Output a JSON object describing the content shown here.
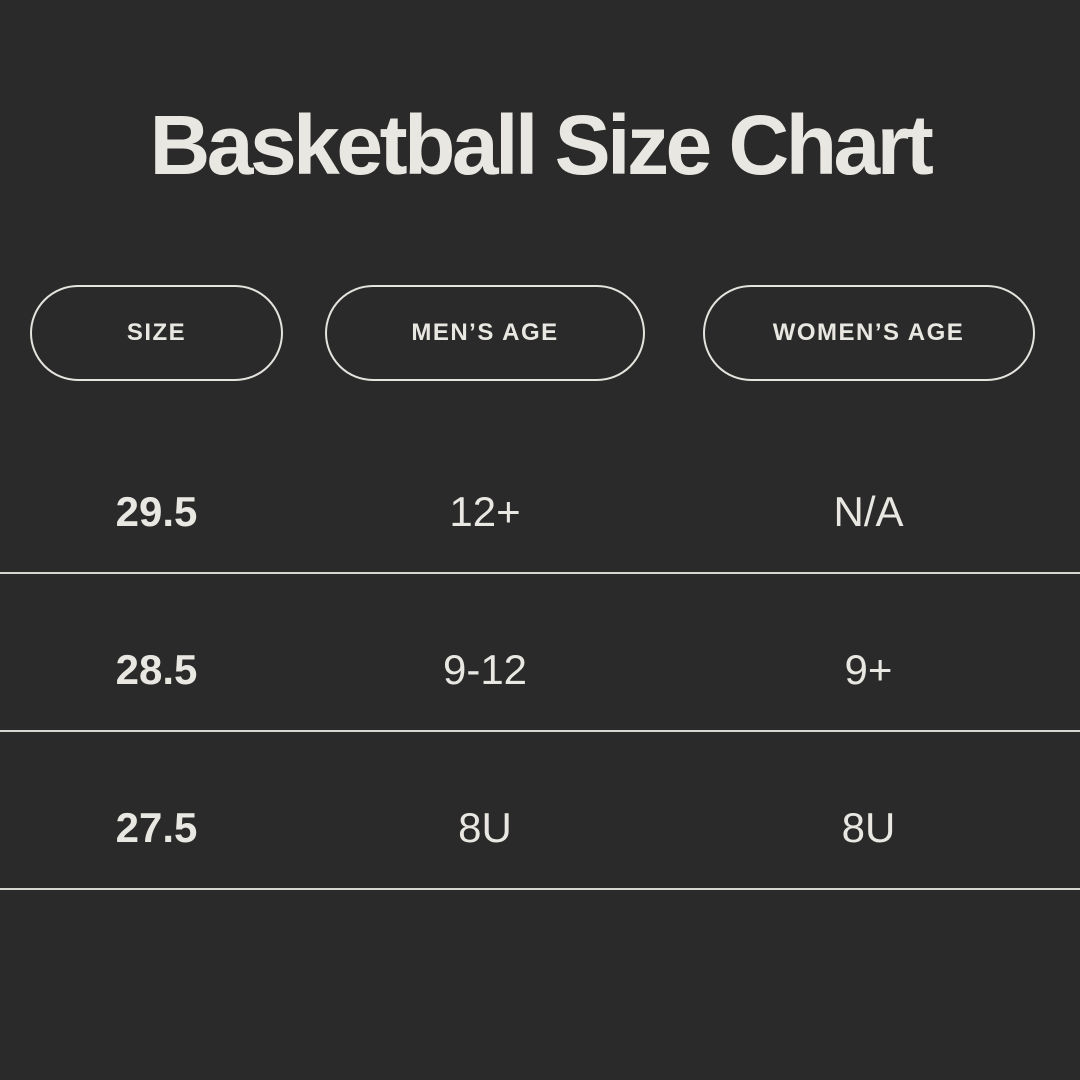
{
  "theme": {
    "background": "#2b2a2a",
    "text_color": "#e9e7e1",
    "divider_color": "#d8d6d0",
    "pill_border_color": "#e5e3dd"
  },
  "title": "Basketball Size Chart",
  "chart_data": {
    "type": "table",
    "title": "Basketball Size Chart",
    "columns": [
      "SIZE",
      "MEN’S AGE",
      "WOMEN’S AGE"
    ],
    "rows": [
      [
        "29.5",
        "12+",
        "N/A"
      ],
      [
        "28.5",
        "9-12",
        "9+"
      ],
      [
        "27.5",
        "8U",
        "8U"
      ]
    ]
  }
}
